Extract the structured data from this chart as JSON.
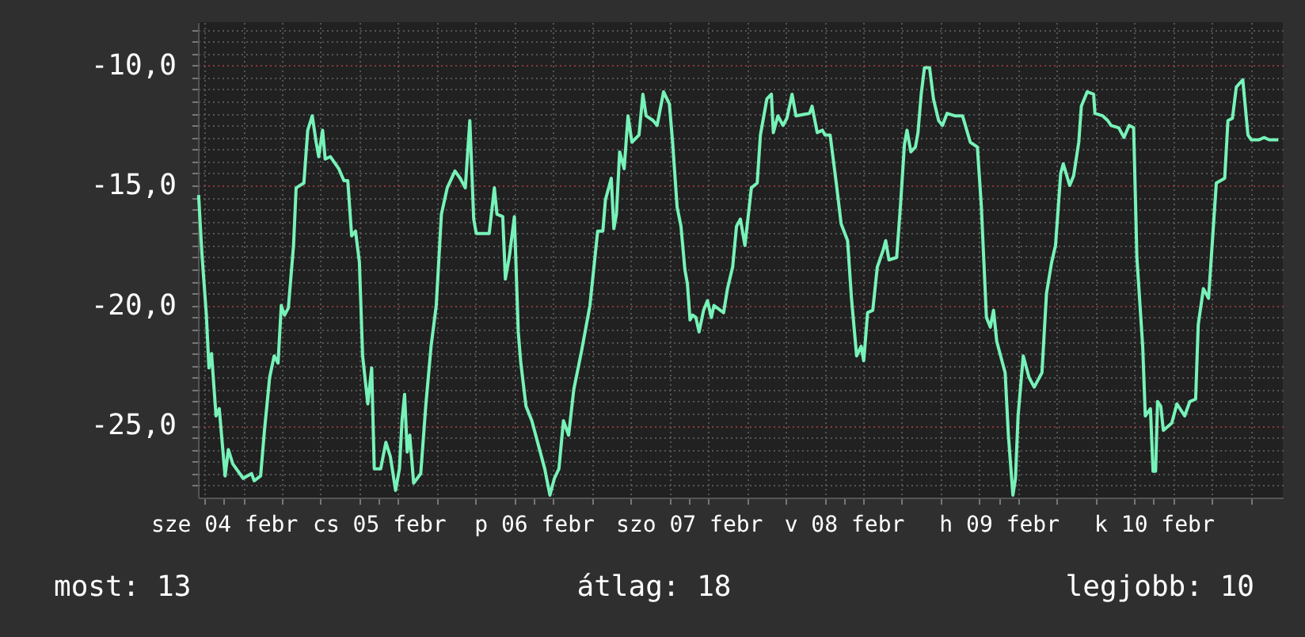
{
  "chart_data": {
    "type": "line",
    "color": "#77f2b8",
    "x": [
      "--02-03T20:06",
      "--02-03T20:36",
      "--02-03T21:18",
      "--02-03T21:42",
      "--02-03T22:06",
      "--02-03T22:48",
      "--02-03T23:18",
      "--02-04T00:12",
      "--02-04T00:42",
      "--02-04T01:24",
      "--02-04T03:00",
      "--02-04T04:18",
      "--02-04T04:42",
      "--02-04T05:42",
      "--02-04T06:18",
      "--02-04T07:06",
      "--02-04T07:48",
      "--02-04T08:24",
      "--02-04T08:54",
      "--02-04T09:24",
      "--02-04T10:00",
      "--02-04T10:48",
      "--02-04T11:12",
      "--02-04T12:24",
      "--02-04T13:00",
      "--02-04T13:42",
      "--02-04T14:18",
      "--02-04T14:42",
      "--02-04T15:18",
      "--02-04T15:42",
      "--02-04T16:30",
      "--02-04T17:48",
      "--02-04T18:36",
      "--02-04T19:12",
      "--02-04T19:48",
      "--02-04T20:24",
      "--02-04T21:00",
      "--02-04T21:30",
      "--02-04T22:18",
      "--02-04T22:54",
      "--02-04T23:18",
      "--02-05T00:18",
      "--02-05T01:06",
      "--02-05T01:48",
      "--02-05T02:36",
      "--02-05T03:12",
      "--02-05T03:36",
      "--02-05T04:00",
      "--02-05T04:24",
      "--02-05T04:48",
      "--02-05T05:24",
      "--02-05T06:30",
      "--02-05T07:18",
      "--02-05T08:06",
      "--02-05T08:54",
      "--02-05T09:42",
      "--02-05T10:36",
      "--02-05T11:48",
      "--02-05T12:36",
      "--02-05T13:24",
      "--02-05T14:06",
      "--02-05T14:42",
      "--02-05T15:06",
      "--02-05T17:06",
      "--02-05T17:54",
      "--02-05T18:18",
      "--02-05T19:12",
      "--02-05T19:36",
      "--02-05T20:12",
      "--02-05T21:00",
      "--02-05T21:36",
      "--02-05T22:00",
      "--02-05T22:48",
      "--02-05T23:42",
      "--02-06T00:54",
      "--02-06T01:42",
      "--02-06T02:30",
      "--02-06T03:12",
      "--02-06T03:54",
      "--02-06T04:36",
      "--02-06T05:24",
      "--02-06T06:12",
      "--02-06T07:24",
      "--02-06T08:42",
      "--02-06T09:54",
      "--02-06T10:42",
      "--02-06T11:06",
      "--02-06T12:00",
      "--02-06T12:24",
      "--02-06T12:48",
      "--02-06T13:18",
      "--02-06T14:00",
      "--02-06T14:36",
      "--02-06T15:12",
      "--02-06T16:18",
      "--02-06T16:54",
      "--02-06T17:24",
      "--02-06T18:30",
      "--02-06T19:06",
      "--02-06T20:06",
      "--02-06T21:00",
      "--02-06T21:30",
      "--02-06T22:12",
      "--02-06T22:48",
      "--02-06T23:24",
      "--02-06T23:48",
      "--02-07T00:12",
      "--02-07T00:36",
      "--02-07T01:06",
      "--02-07T01:36",
      "--02-07T02:18",
      "--02-07T02:54",
      "--02-07T03:30",
      "--02-07T03:54",
      "--02-07T05:24",
      "--02-07T06:00",
      "--02-07T06:48",
      "--02-07T07:24",
      "--02-07T08:00",
      "--02-07T08:42",
      "--02-07T09:42",
      "--02-07T10:36",
      "--02-07T11:06",
      "--02-07T12:06",
      "--02-07T12:48",
      "--02-07T13:06",
      "--02-07T13:48",
      "--02-07T14:36",
      "--02-07T15:12",
      "--02-07T16:00",
      "--02-07T16:36",
      "--02-07T18:42",
      "--02-07T19:06",
      "--02-07T19:54",
      "--02-07T20:42",
      "--02-07T21:06",
      "--02-07T21:54",
      "--02-07T22:48",
      "--02-07T23:36",
      "--02-08T00:36",
      "--02-08T01:12",
      "--02-08T02:00",
      "--02-08T02:42",
      "--02-08T03:06",
      "--02-08T03:42",
      "--02-08T04:30",
      "--02-08T05:12",
      "--02-08T06:06",
      "--02-08T06:30",
      "--02-08T07:00",
      "--02-08T08:12",
      "--02-08T08:48",
      "--02-08T09:24",
      "--02-08T09:48",
      "--02-08T10:24",
      "--02-08T11:06",
      "--02-08T11:30",
      "--02-08T12:00",
      "--02-08T12:30",
      "--02-08T13:18",
      "--02-08T13:54",
      "--02-08T14:42",
      "--02-08T15:18",
      "--02-08T16:00",
      "--02-08T17:12",
      "--02-08T18:24",
      "--02-08T19:36",
      "--02-08T20:42",
      "--02-08T21:18",
      "--02-08T22:06",
      "--02-08T22:42",
      "--02-08T23:12",
      "--02-08T23:42",
      "--02-09T00:18",
      "--02-09T01:00",
      "--02-09T01:30",
      "--02-09T02:12",
      "--02-09T02:36",
      "--02-09T03:00",
      "--02-09T03:48",
      "--02-09T04:42",
      "--02-09T05:30",
      "--02-09T06:42",
      "--02-09T07:24",
      "--02-09T08:12",
      "--02-09T08:48",
      "--02-09T09:36",
      "--02-09T10:00",
      "--02-09T11:00",
      "--02-09T11:36",
      "--02-09T12:24",
      "--02-09T12:48",
      "--02-09T13:42",
      "--02-09T14:42",
      "--02-09T14:54",
      "--02-09T16:06",
      "--02-09T16:54",
      "--02-09T17:24",
      "--02-09T18:36",
      "--02-09T19:24",
      "--02-09T20:12",
      "--02-09T20:54",
      "--02-09T21:24",
      "--02-09T22:18",
      "--02-09T22:42",
      "--02-09T23:30",
      "--02-09T23:54",
      "--02-10T00:18",
      "--02-10T00:36",
      "--02-10T01:06",
      "--02-10T01:30",
      "--02-10T02:48",
      "--02-10T03:36",
      "--02-10T04:48",
      "--02-10T05:36",
      "--02-10T06:30",
      "--02-10T06:54",
      "--02-10T07:42",
      "--02-10T08:30",
      "--02-10T09:06",
      "--02-10T09:42",
      "--02-10T11:00",
      "--02-10T11:30",
      "--02-10T12:12",
      "--02-10T12:48",
      "--02-10T13:48",
      "--02-10T14:36",
      "--02-10T15:06",
      "--02-10T16:18",
      "--02-10T17:06",
      "--02-10T17:54",
      "--02-10T19:18"
    ],
    "values": [
      -15.4,
      -17.8,
      -20.4,
      -22.6,
      -22.0,
      -24.6,
      -24.3,
      -27.1,
      -26.0,
      -26.6,
      -27.2,
      -27.0,
      -27.3,
      -27.1,
      -25.2,
      -23.0,
      -22.1,
      -22.4,
      -20.0,
      -20.4,
      -20.1,
      -17.5,
      -15.1,
      -14.9,
      -12.7,
      -12.1,
      -13.2,
      -13.8,
      -12.7,
      -13.9,
      -13.8,
      -14.3,
      -14.8,
      -14.8,
      -17.1,
      -16.9,
      -18.2,
      -22.1,
      -24.1,
      -22.6,
      -26.8,
      -26.8,
      -25.7,
      -26.3,
      -27.7,
      -26.8,
      -24.8,
      -23.7,
      -26.1,
      -25.4,
      -27.4,
      -27.0,
      -24.1,
      -21.7,
      -20.0,
      -16.2,
      -15.1,
      -14.4,
      -14.7,
      -15.1,
      -12.3,
      -16.4,
      -17.0,
      -17.0,
      -15.1,
      -16.2,
      -16.3,
      -18.9,
      -18.0,
      -16.3,
      -21.1,
      -22.4,
      -24.2,
      -24.8,
      -26.0,
      -26.8,
      -27.9,
      -27.2,
      -26.8,
      -24.8,
      -25.4,
      -23.5,
      -21.9,
      -20.0,
      -16.9,
      -16.9,
      -15.6,
      -14.7,
      -16.8,
      -16.2,
      -13.6,
      -14.3,
      -12.1,
      -13.2,
      -12.9,
      -11.2,
      -12.1,
      -12.3,
      -12.5,
      -11.1,
      -11.6,
      -13.2,
      -15.9,
      -16.7,
      -18.5,
      -19.1,
      -20.6,
      -20.4,
      -20.5,
      -21.1,
      -20.2,
      -19.8,
      -20.5,
      -20.0,
      -20.3,
      -19.3,
      -18.4,
      -16.7,
      -16.4,
      -17.5,
      -15.1,
      -14.9,
      -12.9,
      -11.4,
      -11.2,
      -12.8,
      -12.1,
      -12.5,
      -12.2,
      -11.2,
      -12.1,
      -12.0,
      -11.7,
      -12.8,
      -12.7,
      -12.9,
      -12.9,
      -14.8,
      -16.6,
      -17.3,
      -19.7,
      -22.1,
      -21.7,
      -22.3,
      -20.3,
      -20.2,
      -18.4,
      -17.7,
      -17.3,
      -18.1,
      -18.0,
      -15.8,
      -13.3,
      -12.7,
      -13.6,
      -13.4,
      -12.8,
      -11.2,
      -10.1,
      -10.1,
      -11.4,
      -12.3,
      -12.5,
      -12.0,
      -12.1,
      -12.1,
      -13.2,
      -13.4,
      -15.8,
      -20.5,
      -20.9,
      -20.2,
      -21.5,
      -22.1,
      -22.8,
      -25.4,
      -27.9,
      -27.2,
      -24.6,
      -22.1,
      -23.0,
      -23.4,
      -22.8,
      -19.5,
      -18.2,
      -17.5,
      -14.5,
      -14.1,
      -15.0,
      -14.6,
      -13.2,
      -11.7,
      -11.1,
      -11.2,
      -12.0,
      -12.1,
      -12.3,
      -12.5,
      -12.6,
      -13.0,
      -12.5,
      -12.6,
      -18.0,
      -21.7,
      -24.6,
      -24.3,
      -26.9,
      -26.9,
      -24.0,
      -24.2,
      -25.2,
      -24.9,
      -24.1,
      -24.6,
      -24.0,
      -23.9,
      -20.8,
      -19.3,
      -19.7,
      -17.3,
      -14.9,
      -14.7,
      -12.3,
      -12.2,
      -10.9,
      -10.6,
      -12.9,
      -13.1,
      -13.1,
      -13.0,
      -13.1,
      -13.1
    ],
    "xlim": [
      "--02-03T20:00",
      "--02-10T20:00"
    ],
    "xticks": [
      {
        "value": "--02-04T00:00",
        "label": "sze 04 febr"
      },
      {
        "value": "--02-05T00:00",
        "label": "cs 05 febr"
      },
      {
        "value": "--02-06T00:00",
        "label": "p 06 febr"
      },
      {
        "value": "--02-07T00:00",
        "label": "szo 07 febr"
      },
      {
        "value": "--02-08T00:00",
        "label": "v 08 febr"
      },
      {
        "value": "--02-09T00:00",
        "label": "h 09 febr"
      },
      {
        "value": "--02-10T00:00",
        "label": "k 10 febr"
      },
      {
        "value": "--02-03T21:00",
        "label": null
      },
      {
        "value": "--02-04T03:00",
        "label": null
      },
      {
        "value": "--02-04T09:00",
        "label": null
      },
      {
        "value": "--02-04T15:00",
        "label": null
      },
      {
        "value": "--02-04T21:00",
        "label": null
      },
      {
        "value": "--02-05T03:00",
        "label": null
      },
      {
        "value": "--02-05T09:00",
        "label": null
      },
      {
        "value": "--02-05T15:00",
        "label": null
      },
      {
        "value": "--02-05T21:00",
        "label": null
      },
      {
        "value": "--02-06T03:00",
        "label": null
      },
      {
        "value": "--02-06T09:00",
        "label": null
      },
      {
        "value": "--02-06T15:00",
        "label": null
      },
      {
        "value": "--02-06T21:00",
        "label": null
      },
      {
        "value": "--02-07T03:00",
        "label": null
      },
      {
        "value": "--02-07T09:00",
        "label": null
      },
      {
        "value": "--02-07T15:00",
        "label": null
      },
      {
        "value": "--02-07T21:00",
        "label": null
      },
      {
        "value": "--02-08T03:00",
        "label": null
      },
      {
        "value": "--02-08T09:00",
        "label": null
      },
      {
        "value": "--02-08T15:00",
        "label": null
      },
      {
        "value": "--02-08T21:00",
        "label": null
      },
      {
        "value": "--02-09T03:00",
        "label": null
      },
      {
        "value": "--02-09T09:00",
        "label": null
      },
      {
        "value": "--02-09T15:00",
        "label": null
      },
      {
        "value": "--02-09T21:00",
        "label": null
      },
      {
        "value": "--02-10T03:00",
        "label": null
      },
      {
        "value": "--02-10T09:00",
        "label": null
      },
      {
        "value": "--02-10T15:00",
        "label": null
      }
    ],
    "ylim": [
      -28,
      -8.2
    ],
    "yticks": [
      {
        "value": -25,
        "label": "-25,0"
      },
      {
        "value": -20,
        "label": "-20,0"
      },
      {
        "value": -15,
        "label": "-15,0"
      },
      {
        "value": -10,
        "label": "-10,0"
      },
      {
        "value": -27.5,
        "label": null
      },
      {
        "value": -27,
        "label": null
      },
      {
        "value": -26.5,
        "label": null
      },
      {
        "value": -26,
        "label": null
      },
      {
        "value": -25.5,
        "label": null
      },
      {
        "value": -24.5,
        "label": null
      },
      {
        "value": -24,
        "label": null
      },
      {
        "value": -23.5,
        "label": null
      },
      {
        "value": -23,
        "label": null
      },
      {
        "value": -22.5,
        "label": null
      },
      {
        "value": -22,
        "label": null
      },
      {
        "value": -21.5,
        "label": null
      },
      {
        "value": -21,
        "label": null
      },
      {
        "value": -20.5,
        "label": null
      },
      {
        "value": -19.5,
        "label": null
      },
      {
        "value": -19,
        "label": null
      },
      {
        "value": -18.5,
        "label": null
      },
      {
        "value": -18,
        "label": null
      },
      {
        "value": -17.5,
        "label": null
      },
      {
        "value": -17,
        "label": null
      },
      {
        "value": -16.5,
        "label": null
      },
      {
        "value": -16,
        "label": null
      },
      {
        "value": -15.5,
        "label": null
      },
      {
        "value": -14.5,
        "label": null
      },
      {
        "value": -14,
        "label": null
      },
      {
        "value": -13.5,
        "label": null
      },
      {
        "value": -13,
        "label": null
      },
      {
        "value": -12.5,
        "label": null
      },
      {
        "value": -12,
        "label": null
      },
      {
        "value": -11.5,
        "label": null
      },
      {
        "value": -11,
        "label": null
      },
      {
        "value": -10.5,
        "label": null
      },
      {
        "value": -9.5,
        "label": null
      },
      {
        "value": -9,
        "label": null
      },
      {
        "value": -8.5,
        "label": null
      }
    ],
    "grid": true,
    "annotations": [
      "most: 13",
      "átlag: 18",
      "legjobb: 10"
    ]
  }
}
